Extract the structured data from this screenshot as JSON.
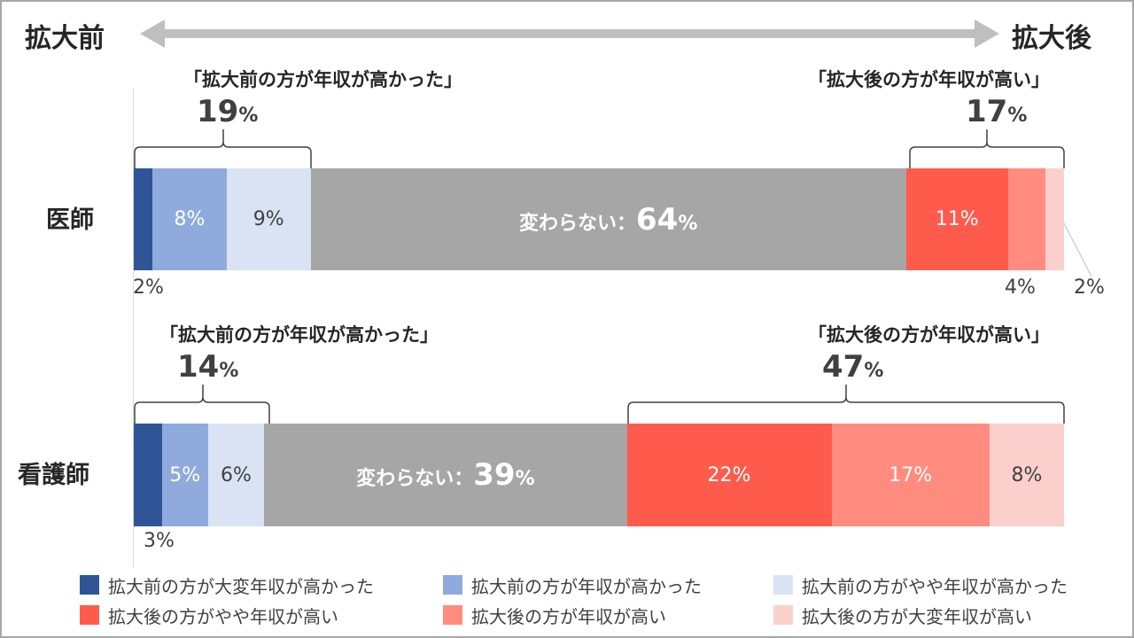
{
  "header": {
    "left_label": "拡大前",
    "right_label": "拡大後"
  },
  "colors": {
    "before_much": "#2f5597",
    "before_mid": "#8faadc",
    "before_slight": "#dae3f3",
    "no_change": "#a6a6a6",
    "after_slight": "#ff5b4d",
    "after_mid": "#ff8c7f",
    "after_much": "#fbd0cc",
    "arrow": "#bfbfbf"
  },
  "chart_data": {
    "type": "bar",
    "orientation": "horizontal",
    "stacked": true,
    "normalized_percent": true,
    "categories": [
      "医師",
      "看護師"
    ],
    "series": [
      {
        "name": "拡大前の方が大変年収が高かった",
        "values": [
          2,
          3
        ]
      },
      {
        "name": "拡大前の方が年収が高かった",
        "values": [
          8,
          5
        ]
      },
      {
        "name": "拡大前の方がやや年収が高かった",
        "values": [
          9,
          6
        ]
      },
      {
        "name": "変わらない",
        "values": [
          64,
          39
        ]
      },
      {
        "name": "拡大後の方がやや年収が高い",
        "values": [
          11,
          22
        ]
      },
      {
        "name": "拡大後の方が年収が高い",
        "values": [
          4,
          17
        ]
      },
      {
        "name": "拡大後の方が大変年収が高い",
        "values": [
          2,
          8
        ]
      }
    ],
    "segment_labels": [
      [
        "2%",
        "8%",
        "9%",
        "64",
        "11%",
        "4%",
        "2%"
      ],
      [
        "3%",
        "5%",
        "6%",
        "39",
        "22%",
        "17%",
        "8%"
      ]
    ],
    "no_change_label": "変わらない：",
    "percent_unit": "%",
    "brackets": [
      {
        "left_title": "「拡大前の方が年収が高かった」",
        "left_total": "19",
        "right_title": "「拡大後の方が年収が高い」",
        "right_total": "17"
      },
      {
        "left_title": "「拡大前の方が年収が高かった」",
        "left_total": "14",
        "right_title": "「拡大後の方が年収が高い」",
        "right_total": "47"
      }
    ],
    "legend": [
      "拡大前の方が大変年収が高かった",
      "拡大前の方が年収が高かった",
      "拡大前の方がやや年収が高かった",
      "拡大後の方がやや年収が高い",
      "拡大後の方が年収が高い",
      "拡大後の方が大変年収が高い"
    ]
  }
}
